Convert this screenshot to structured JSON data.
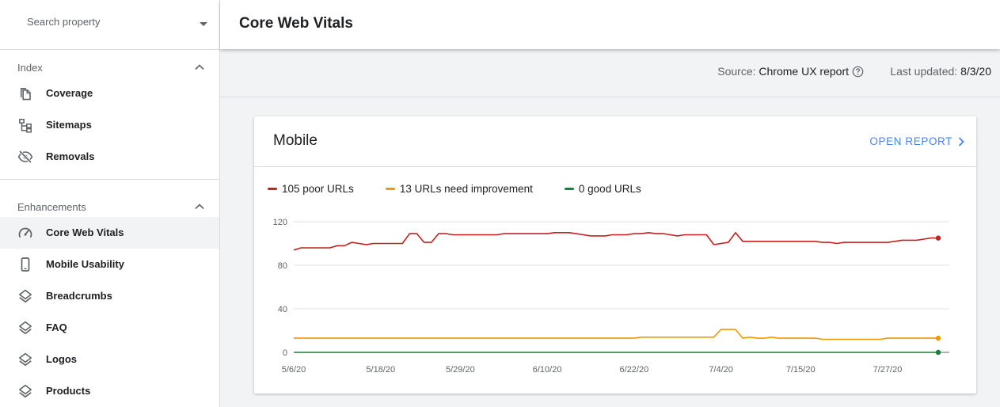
{
  "sidebar": {
    "search_placeholder": "Search property",
    "sections": [
      {
        "label": "Index",
        "items": [
          {
            "label": "Coverage",
            "icon": "coverage-icon"
          },
          {
            "label": "Sitemaps",
            "icon": "sitemaps-icon"
          },
          {
            "label": "Removals",
            "icon": "removals-icon"
          }
        ]
      },
      {
        "label": "Enhancements",
        "items": [
          {
            "label": "Core Web Vitals",
            "icon": "speedometer-icon",
            "active": true
          },
          {
            "label": "Mobile Usability",
            "icon": "phone-icon"
          },
          {
            "label": "Breadcrumbs",
            "icon": "layers-icon"
          },
          {
            "label": "FAQ",
            "icon": "layers-icon"
          },
          {
            "label": "Logos",
            "icon": "layers-icon"
          },
          {
            "label": "Products",
            "icon": "layers-icon"
          }
        ]
      }
    ]
  },
  "header": {
    "title": "Core Web Vitals"
  },
  "info": {
    "source_label": "Source:",
    "source_value": "Chrome UX report",
    "updated_label": "Last updated:",
    "updated_value": "8/3/20"
  },
  "card": {
    "title": "Mobile",
    "open_report": "OPEN REPORT"
  },
  "chart_data": {
    "type": "line",
    "y_ticks": [
      0,
      40,
      80,
      120
    ],
    "ylim": [
      0,
      120
    ],
    "x_ticks": [
      "5/6/20",
      "5/18/20",
      "5/29/20",
      "6/10/20",
      "6/22/20",
      "7/4/20",
      "7/15/20",
      "7/27/20"
    ],
    "x_tick_days": [
      0,
      12,
      23,
      35,
      47,
      59,
      70,
      82
    ],
    "x_end_day": 89,
    "series": [
      {
        "name": "105 poor URLs",
        "color": "#c5221f",
        "values": [
          94,
          96,
          96,
          96,
          96,
          96,
          98,
          98,
          101,
          100,
          99,
          100,
          100,
          100,
          100,
          100,
          109,
          109,
          101,
          101,
          109,
          109,
          108,
          108,
          108,
          108,
          108,
          108,
          108,
          109,
          109,
          109,
          109,
          109,
          109,
          109,
          110,
          110,
          110,
          109,
          108,
          107,
          107,
          107,
          108,
          108,
          108,
          109,
          109,
          110,
          109,
          109,
          108,
          107,
          108,
          108,
          108,
          108,
          99,
          100,
          101,
          110,
          102,
          102,
          102,
          102,
          102,
          102,
          102,
          102,
          102,
          102,
          102,
          101,
          101,
          100,
          101,
          101,
          101,
          101,
          101,
          101,
          101,
          102,
          103,
          103,
          103,
          104,
          105,
          105
        ]
      },
      {
        "name": "13 URLs need improvement",
        "color": "#f29900",
        "values": [
          13,
          13,
          13,
          13,
          13,
          13,
          13,
          13,
          13,
          13,
          13,
          13,
          13,
          13,
          13,
          13,
          13,
          13,
          13,
          13,
          13,
          13,
          13,
          13,
          13,
          13,
          13,
          13,
          13,
          13,
          13,
          13,
          13,
          13,
          13,
          13,
          13,
          13,
          13,
          13,
          13,
          13,
          13,
          13,
          13,
          13,
          13,
          13,
          14,
          14,
          14,
          14,
          14,
          14,
          14,
          14,
          14,
          14,
          14,
          21,
          21,
          21,
          13,
          14,
          13,
          13,
          14,
          13,
          13,
          13,
          13,
          13,
          13,
          12,
          12,
          12,
          12,
          12,
          12,
          12,
          12,
          12,
          13,
          13,
          13,
          13,
          13,
          13,
          13,
          13
        ]
      },
      {
        "name": "0 good URLs",
        "color": "#188038",
        "values": [
          0,
          0,
          0,
          0,
          0,
          0,
          0,
          0,
          0,
          0,
          0,
          0,
          0,
          0,
          0,
          0,
          0,
          0,
          0,
          0,
          0,
          0,
          0,
          0,
          0,
          0,
          0,
          0,
          0,
          0,
          0,
          0,
          0,
          0,
          0,
          0,
          0,
          0,
          0,
          0,
          0,
          0,
          0,
          0,
          0,
          0,
          0,
          0,
          0,
          0,
          0,
          0,
          0,
          0,
          0,
          0,
          0,
          0,
          0,
          0,
          0,
          0,
          0,
          0,
          0,
          0,
          0,
          0,
          0,
          0,
          0,
          0,
          0,
          0,
          0,
          0,
          0,
          0,
          0,
          0,
          0,
          0,
          0,
          0,
          0,
          0,
          0,
          0,
          0,
          0
        ]
      }
    ]
  }
}
